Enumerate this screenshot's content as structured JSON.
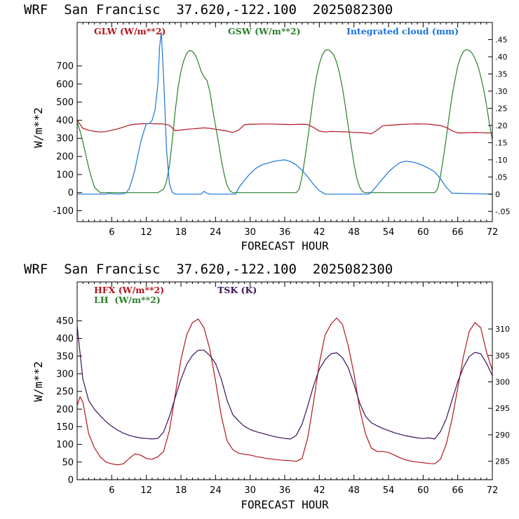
{
  "colors": {
    "red": "#b3151d",
    "green": "#2a7f2a",
    "blue": "#1a73d9",
    "purple": "#3b1158",
    "frame": "#000000"
  },
  "chart_data": [
    {
      "type": "line",
      "title": "WRF  San Francisc  37.620,-122.100  2025082300",
      "xlabel": "FORECAST HOUR",
      "ylabel": "W/m**2",
      "xlim": [
        0,
        72
      ],
      "ylim": [
        -160,
        940
      ],
      "x_ticks": [
        "6",
        "12",
        "18",
        "24",
        "30",
        "36",
        "42",
        "48",
        "54",
        "60",
        "66",
        "72"
      ],
      "y_ticks": [
        "-100",
        "0",
        "100",
        "200",
        "300",
        "400",
        "500",
        "600",
        "700"
      ],
      "y2_ticks": [
        "-.05",
        "0",
        ".05",
        ".10",
        ".15",
        ".20",
        ".25",
        ".30",
        ".35",
        ".40",
        ".45"
      ],
      "y2lim": [
        -0.08,
        0.5
      ],
      "series": [
        {
          "name": "GLW (W/m**2)",
          "axis": "left",
          "color": "red",
          "x": [
            0,
            1,
            2,
            3,
            4,
            5,
            6,
            7,
            8,
            9,
            10,
            11,
            12,
            13,
            14,
            15,
            16,
            17,
            18,
            19,
            20,
            21,
            22,
            23,
            24,
            25,
            26,
            27,
            28,
            29,
            30,
            31,
            32,
            33,
            34,
            35,
            36,
            37,
            38,
            39,
            40,
            41,
            42,
            43,
            44,
            45,
            46,
            47,
            48,
            49,
            50,
            51,
            52,
            53,
            54,
            55,
            56,
            57,
            58,
            59,
            60,
            61,
            62,
            63,
            64,
            65,
            66,
            67,
            68,
            69,
            70,
            71,
            72
          ],
          "y": [
            400,
            355,
            345,
            338,
            335,
            337,
            345,
            352,
            362,
            372,
            378,
            380,
            381,
            381,
            380,
            379,
            372,
            342,
            346,
            350,
            352,
            355,
            358,
            355,
            350,
            345,
            340,
            332,
            345,
            375,
            378,
            378,
            379,
            379,
            379,
            378,
            377,
            376,
            377,
            378,
            376,
            360,
            340,
            335,
            338,
            337,
            336,
            335,
            333,
            332,
            330,
            325,
            345,
            370,
            372,
            374,
            376,
            378,
            379,
            380,
            379,
            378,
            374,
            371,
            360,
            342,
            330,
            330,
            331,
            332,
            331,
            330,
            330
          ]
        },
        {
          "name": "GSW (W/m**2)",
          "axis": "left",
          "color": "green",
          "x": [
            0,
            0.5,
            1,
            1.5,
            2,
            2.5,
            3,
            4,
            14,
            15,
            15.5,
            16,
            16.5,
            17,
            17.5,
            18,
            18.5,
            19,
            19.5,
            20,
            20.5,
            21,
            21.5,
            22,
            22.5,
            23,
            23.5,
            24,
            24.5,
            25,
            25.5,
            26,
            26.5,
            27,
            38,
            38.5,
            39,
            39.5,
            40,
            40.5,
            41,
            41.5,
            42,
            42.5,
            43,
            43.5,
            44,
            44.5,
            45,
            45.5,
            46,
            46.5,
            47,
            47.5,
            48,
            48.5,
            49,
            49.5,
            50,
            50.5,
            51,
            62,
            62.5,
            63,
            63.5,
            64,
            64.5,
            65,
            65.5,
            66,
            66.5,
            67,
            67.5,
            68,
            68.5,
            69,
            69.5,
            70,
            70.5,
            71,
            71.5,
            72
          ],
          "y": [
            390,
            340,
            280,
            210,
            140,
            80,
            30,
            0,
            0,
            20,
            60,
            150,
            290,
            450,
            580,
            670,
            730,
            770,
            785,
            780,
            760,
            720,
            670,
            640,
            620,
            560,
            460,
            370,
            280,
            180,
            100,
            40,
            10,
            0,
            0,
            20,
            90,
            190,
            300,
            420,
            540,
            640,
            710,
            760,
            785,
            790,
            780,
            760,
            720,
            660,
            580,
            480,
            370,
            260,
            160,
            80,
            30,
            5,
            0,
            0,
            0,
            0,
            20,
            90,
            190,
            300,
            420,
            530,
            620,
            700,
            750,
            780,
            790,
            785,
            770,
            740,
            700,
            640,
            570,
            480,
            380,
            290
          ]
        },
        {
          "name": "Integrated cloud (mm)",
          "axis": "right",
          "color": "blue",
          "x": [
            0,
            5,
            5.5,
            6,
            7,
            8,
            8.5,
            9,
            9.5,
            10,
            10.5,
            11,
            11.5,
            12,
            12.5,
            13,
            13.5,
            14,
            14.3,
            14.6,
            15,
            15.5,
            16,
            16.5,
            17,
            21.5,
            22,
            22.5,
            23,
            27.5,
            28,
            29,
            30,
            31,
            32,
            33,
            34,
            35,
            36,
            37,
            38,
            39,
            40,
            41,
            42,
            43,
            50.5,
            51,
            52,
            53,
            54,
            55,
            56,
            57,
            58,
            59,
            60,
            61,
            62,
            63,
            64,
            65,
            72
          ],
          "y": [
            0,
            0,
            0.002,
            0.001,
            0,
            0.001,
            0.005,
            0.015,
            0.04,
            0.07,
            0.11,
            0.15,
            0.18,
            0.205,
            0.205,
            0.215,
            0.245,
            0.32,
            0.43,
            0.47,
            0.34,
            0.13,
            0.03,
            0.005,
            0,
            0,
            0.008,
            0.003,
            0,
            0,
            0.018,
            0.04,
            0.06,
            0.075,
            0.085,
            0.09,
            0.095,
            0.098,
            0.1,
            0.095,
            0.085,
            0.07,
            0.05,
            0.028,
            0.01,
            0,
            0,
            0.005,
            0.025,
            0.045,
            0.065,
            0.08,
            0.092,
            0.096,
            0.094,
            0.09,
            0.083,
            0.075,
            0.065,
            0.045,
            0.02,
            0.003,
            0
          ]
        }
      ]
    },
    {
      "type": "line",
      "title": "WRF  San Francisc  37.620,-122.100  2025082300",
      "xlabel": "FORECAST HOUR",
      "ylabel": "W/m**2",
      "xlim": [
        0,
        72
      ],
      "ylim": [
        0,
        560
      ],
      "x_ticks": [
        "6",
        "12",
        "18",
        "24",
        "30",
        "36",
        "42",
        "48",
        "54",
        "60",
        "66",
        "72"
      ],
      "y_ticks": [
        "0",
        "50",
        "100",
        "150",
        "200",
        "250",
        "300",
        "350",
        "400",
        "450"
      ],
      "y2_ticks": [
        "285",
        "290",
        "295",
        "300",
        "305",
        "310"
      ],
      "y2lim": [
        281.5,
        318.9
      ],
      "series": [
        {
          "name": "HFX (W/m**2)",
          "axis": "left",
          "color": "red",
          "x": [
            0,
            0.5,
            1,
            2,
            3,
            4,
            5,
            6,
            7,
            8,
            9,
            10,
            11,
            12,
            13,
            14,
            15,
            16,
            17,
            18,
            19,
            20,
            21,
            22,
            23,
            24,
            25,
            26,
            27,
            28,
            29,
            30,
            31,
            32,
            33,
            34,
            35,
            36,
            37,
            38,
            39,
            40,
            41,
            42,
            43,
            44,
            45,
            46,
            47,
            48,
            49,
            50,
            51,
            52,
            53,
            54,
            55,
            56,
            57,
            58,
            59,
            60,
            61,
            62,
            63,
            64,
            65,
            66,
            67,
            68,
            69,
            70,
            71,
            72
          ],
          "y": [
            210,
            235,
            220,
            130,
            90,
            65,
            50,
            45,
            42,
            45,
            60,
            73,
            70,
            60,
            58,
            65,
            80,
            140,
            240,
            340,
            410,
            445,
            455,
            430,
            370,
            280,
            180,
            110,
            85,
            75,
            72,
            70,
            66,
            63,
            60,
            58,
            56,
            55,
            54,
            52,
            60,
            120,
            220,
            330,
            410,
            440,
            458,
            440,
            380,
            300,
            200,
            130,
            90,
            80,
            80,
            77,
            70,
            62,
            56,
            52,
            50,
            48,
            46,
            45,
            58,
            100,
            170,
            260,
            350,
            420,
            445,
            430,
            360,
            310
          ]
        },
        {
          "name": "LH  (W/m**2)",
          "axis": "left",
          "color": "green",
          "x": [
            0,
            72
          ],
          "y": [
            0,
            0
          ]
        },
        {
          "name": "TSK (K)",
          "axis": "right",
          "color": "purple",
          "x": [
            0,
            1,
            2,
            3,
            4,
            5,
            6,
            7,
            8,
            9,
            10,
            11,
            12,
            13,
            14,
            15,
            16,
            17,
            18,
            19,
            20,
            21,
            22,
            23,
            24,
            25,
            26,
            27,
            28,
            29,
            30,
            31,
            32,
            33,
            34,
            35,
            36,
            37,
            38,
            39,
            40,
            41,
            42,
            43,
            44,
            45,
            46,
            47,
            48,
            49,
            50,
            51,
            52,
            53,
            54,
            55,
            56,
            57,
            58,
            59,
            60,
            61,
            62,
            63,
            64,
            65,
            66,
            67,
            68,
            69,
            70,
            71,
            72
          ],
          "y": [
            310.5,
            300.5,
            296.5,
            294.8,
            293.6,
            292.5,
            291.6,
            290.9,
            290.3,
            289.9,
            289.6,
            289.4,
            289.3,
            289.2,
            289.3,
            290.5,
            293.5,
            297,
            300.5,
            303.3,
            305,
            306,
            306,
            305,
            303.5,
            300.5,
            296.5,
            293.8,
            292.6,
            291.6,
            291,
            290.6,
            290.3,
            290,
            289.7,
            289.5,
            289.3,
            289.2,
            289.9,
            292,
            295.5,
            299.3,
            302.4,
            304.2,
            305.3,
            305.5,
            304.6,
            302.7,
            299.5,
            296,
            293.5,
            292.3,
            291.7,
            291.2,
            290.8,
            290.4,
            290.1,
            289.8,
            289.6,
            289.4,
            289.3,
            289.4,
            289.2,
            290.6,
            293,
            296.5,
            300,
            302.8,
            304.8,
            305.6,
            305.3,
            303.5,
            301.2
          ]
        }
      ]
    }
  ]
}
